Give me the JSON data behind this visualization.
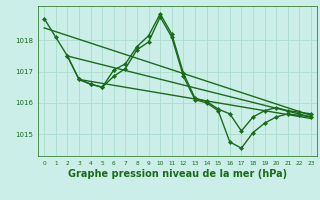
{
  "background_color": "#cceee8",
  "grid_color": "#aaddcc",
  "line_color": "#1a6b1a",
  "marker_color": "#1a6b1a",
  "xlabel": "Graphe pression niveau de la mer (hPa)",
  "xlabel_fontsize": 7.0,
  "xlabel_color": "#1a6b1a",
  "ylim": [
    1014.3,
    1019.1
  ],
  "xlim": [
    -0.5,
    23.5
  ],
  "yticks": [
    1015,
    1016,
    1017,
    1018
  ],
  "xticks": [
    0,
    1,
    2,
    3,
    4,
    5,
    6,
    7,
    8,
    9,
    10,
    11,
    12,
    13,
    14,
    15,
    16,
    17,
    18,
    19,
    20,
    21,
    22,
    23
  ],
  "series": [
    {
      "x": [
        0,
        1,
        2,
        3,
        4,
        5,
        6,
        7,
        8,
        9,
        10,
        11,
        12,
        13,
        14,
        15,
        16,
        17,
        18,
        19,
        20,
        21,
        22,
        23
      ],
      "y": [
        1018.7,
        1018.1,
        1017.5,
        1016.75,
        1016.6,
        1016.5,
        1017.05,
        1017.25,
        1017.8,
        1018.15,
        1018.85,
        1018.2,
        1016.95,
        1016.15,
        1016.05,
        1015.8,
        1015.65,
        1015.1,
        1015.55,
        1015.75,
        1015.85,
        1015.75,
        1015.7,
        1015.65
      ],
      "linewidth": 1.0
    },
    {
      "x": [
        0,
        23
      ],
      "y": [
        1018.4,
        1015.6
      ],
      "linewidth": 1.0
    },
    {
      "x": [
        2,
        23
      ],
      "y": [
        1017.5,
        1015.55
      ],
      "linewidth": 1.0
    },
    {
      "x": [
        3,
        23
      ],
      "y": [
        1016.75,
        1015.5
      ],
      "linewidth": 1.0
    },
    {
      "x": [
        2,
        3,
        4,
        5,
        6,
        7,
        8,
        9,
        10,
        11,
        12,
        13,
        14,
        15,
        16,
        17,
        18,
        19,
        20,
        21,
        22,
        23
      ],
      "y": [
        1017.5,
        1016.75,
        1016.6,
        1016.5,
        1016.85,
        1017.1,
        1017.7,
        1017.95,
        1018.75,
        1018.1,
        1016.85,
        1016.1,
        1016.0,
        1015.75,
        1014.75,
        1014.55,
        1015.05,
        1015.35,
        1015.55,
        1015.65,
        1015.6,
        1015.55
      ],
      "linewidth": 1.0
    }
  ]
}
